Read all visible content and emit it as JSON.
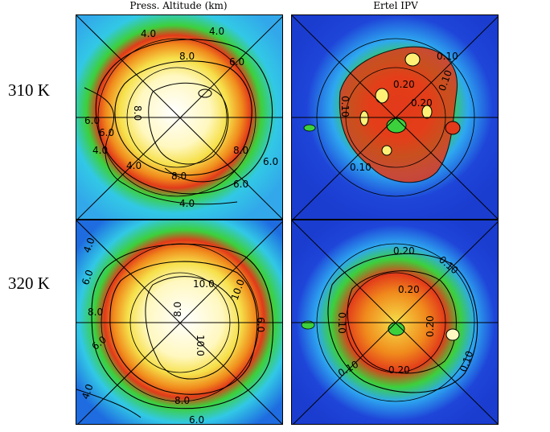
{
  "column_titles": {
    "left": "Press. Altitude (km)",
    "right": "Ertel IPV"
  },
  "row_labels": {
    "top": "310 K",
    "bottom": "320 K"
  },
  "panels": {
    "alt_310": {
      "contour_labels": [
        "4.0",
        "4.0",
        "6.0",
        "8.0",
        "8.0",
        "6.0",
        "6.0",
        "4.0",
        "8.0",
        "8.0",
        "6.0",
        "6.0",
        "4.0",
        "4.0"
      ]
    },
    "ipv_310": {
      "contour_labels": [
        "0.10",
        "0.10",
        "0.20",
        "0.10",
        "0.10",
        "0.20"
      ]
    },
    "alt_320": {
      "contour_labels": [
        "4.0",
        "6.0",
        "8.0",
        "10.0",
        "10.0",
        "6.0",
        "8.0",
        "10.0",
        "6.0",
        "4.0",
        "8.0",
        "6.0"
      ]
    },
    "ipv_320": {
      "contour_labels": [
        "0.20",
        "0.10",
        "0.20",
        "0.10",
        "0.20",
        "0.10",
        "0.10",
        "0.20"
      ]
    }
  },
  "colors": {
    "cold": "#1e44d8",
    "low": "#3cc8e8",
    "mid": "#3cd03c",
    "high": "#e23a1a",
    "peak": "#fff8c0"
  }
}
